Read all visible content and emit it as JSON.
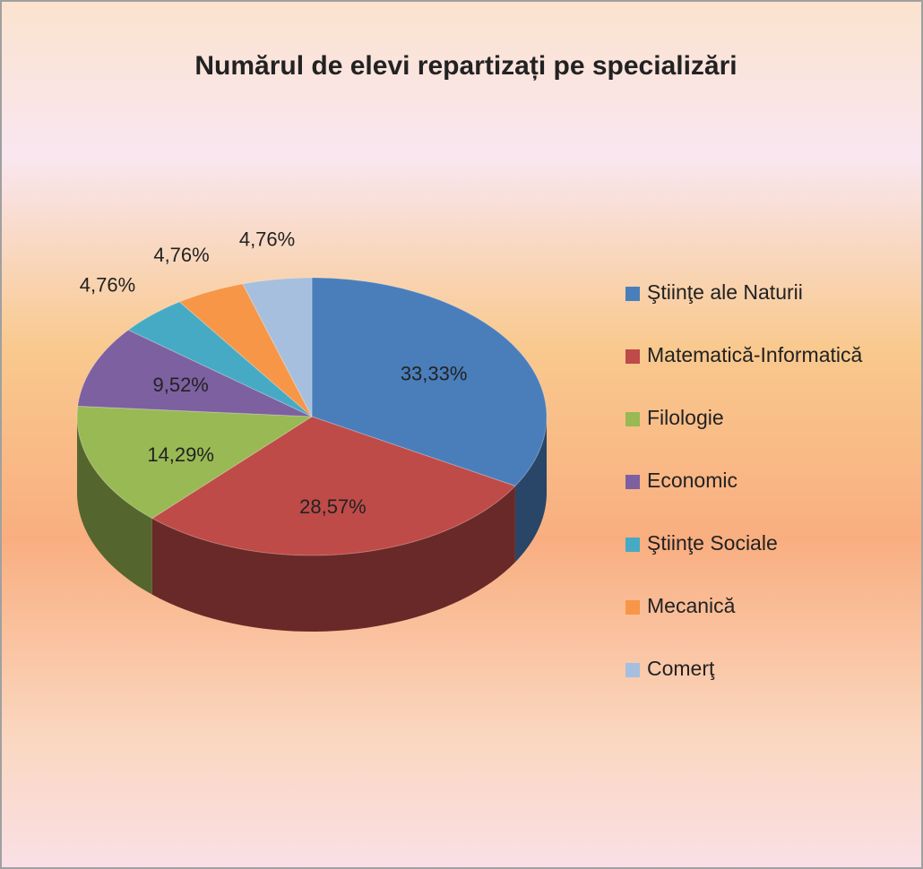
{
  "chart_data": {
    "type": "pie",
    "title": "Numărul de elevi repartizați pe specializări",
    "categories": [
      "Ştiinţe ale Naturii",
      "Matematică-Informatică",
      "Filologie",
      "Economic",
      "Ştiinţe Sociale",
      "Mecanică",
      "Comerţ"
    ],
    "values": [
      33.33,
      28.57,
      14.29,
      9.52,
      4.76,
      4.76,
      4.76
    ],
    "value_labels": [
      "33,33%",
      "28,57%",
      "14,29%",
      "9,52%",
      "4,76%",
      "4,76%",
      "4,76%"
    ],
    "colors": [
      "#4a7ebb",
      "#be4b48",
      "#98b954",
      "#7d60a0",
      "#46aac5",
      "#f79646",
      "#a7bfde"
    ],
    "legend": "right"
  }
}
